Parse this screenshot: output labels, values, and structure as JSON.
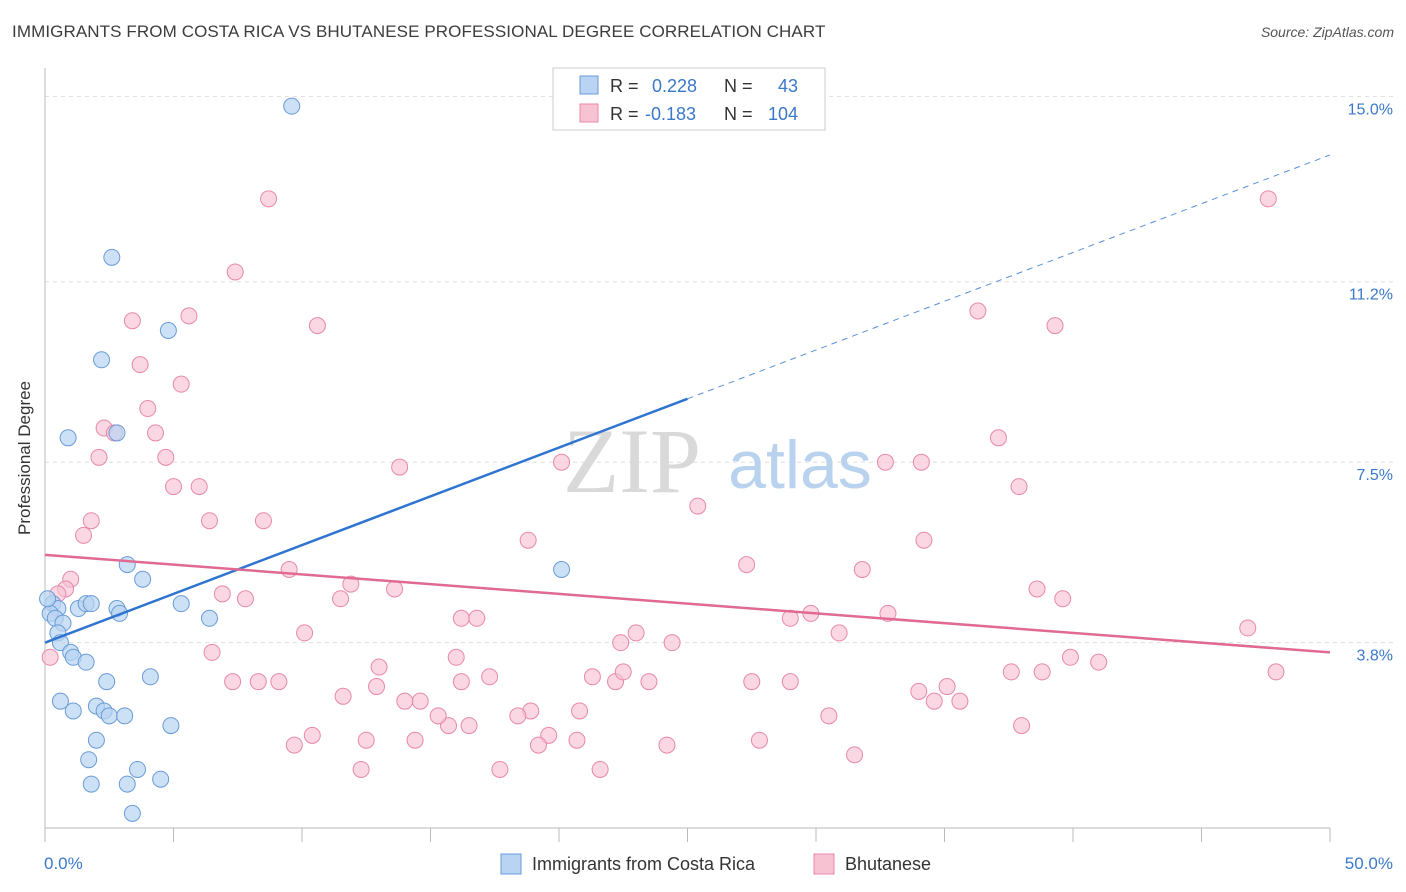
{
  "header": {
    "title": "IMMIGRANTS FROM COSTA RICA VS BHUTANESE PROFESSIONAL DEGREE CORRELATION CHART",
    "source": "Source: ZipAtlas.com"
  },
  "watermark": {
    "zip": "ZIP",
    "atlas": "atlas"
  },
  "colors": {
    "blue_fill": "#b8d4f2",
    "blue_stroke": "#6a9bd8",
    "blue_line": "#2f74d0",
    "pink_fill": "#f7c2d2",
    "pink_stroke": "#e889a8",
    "pink_line": "#e06a93",
    "axis_label": "#3a78c9",
    "grid": "#dddddd"
  },
  "chart_data": {
    "type": "scatter",
    "title": "IMMIGRANTS FROM COSTA RICA VS BHUTANESE PROFESSIONAL DEGREE CORRELATION CHART",
    "xlabel": "",
    "ylabel": "Professional Degree",
    "xlim": [
      0,
      50
    ],
    "ylim": [
      0,
      15.5
    ],
    "x_tick_labels": [
      "0.0%",
      "50.0%"
    ],
    "y_ticks": [
      3.8,
      7.5,
      11.2,
      15.0
    ],
    "y_tick_labels": [
      "3.8%",
      "7.5%",
      "11.2%",
      "15.0%"
    ],
    "legend": [
      {
        "swatch": "blue",
        "r_label": "R =",
        "r_value": "0.228",
        "n_label": "N =",
        "n_value": "43"
      },
      {
        "swatch": "pink",
        "r_label": "R =",
        "r_value": "-0.183",
        "n_label": "N =",
        "n_value": "104"
      }
    ],
    "series": [
      {
        "name": "Immigrants from Costa Rica",
        "color": "blue",
        "trend": {
          "x0": 0,
          "y0": 3.8,
          "x1": 25,
          "y1": 8.8,
          "dashed_to_x": 50,
          "dashed_to_y": 13.8
        },
        "points": [
          [
            9.6,
            14.8
          ],
          [
            2.6,
            11.7
          ],
          [
            4.8,
            10.2
          ],
          [
            2.2,
            9.6
          ],
          [
            2.8,
            8.1
          ],
          [
            0.9,
            8.0
          ],
          [
            3.2,
            5.4
          ],
          [
            3.8,
            5.1
          ],
          [
            0.3,
            4.6
          ],
          [
            0.5,
            4.5
          ],
          [
            1.3,
            4.5
          ],
          [
            1.6,
            4.6
          ],
          [
            1.8,
            4.6
          ],
          [
            2.8,
            4.5
          ],
          [
            2.9,
            4.4
          ],
          [
            5.3,
            4.6
          ],
          [
            6.4,
            4.3
          ],
          [
            0.2,
            4.4
          ],
          [
            0.4,
            4.3
          ],
          [
            0.7,
            4.2
          ],
          [
            0.5,
            4.0
          ],
          [
            0.6,
            3.8
          ],
          [
            1.0,
            3.6
          ],
          [
            1.1,
            3.5
          ],
          [
            1.6,
            3.4
          ],
          [
            2.4,
            3.0
          ],
          [
            4.1,
            3.1
          ],
          [
            0.6,
            2.6
          ],
          [
            1.1,
            2.4
          ],
          [
            2.0,
            2.5
          ],
          [
            2.3,
            2.4
          ],
          [
            2.5,
            2.3
          ],
          [
            3.1,
            2.3
          ],
          [
            4.9,
            2.1
          ],
          [
            2.0,
            1.8
          ],
          [
            1.7,
            1.4
          ],
          [
            3.6,
            1.2
          ],
          [
            4.5,
            1.0
          ],
          [
            1.8,
            0.9
          ],
          [
            3.2,
            0.9
          ],
          [
            3.4,
            0.3
          ],
          [
            20.1,
            5.3
          ],
          [
            0.1,
            4.7
          ]
        ]
      },
      {
        "name": "Bhutanese",
        "color": "pink",
        "trend": {
          "x0": 0,
          "y0": 5.6,
          "x1": 50,
          "y1": 3.6
        },
        "points": [
          [
            8.7,
            12.9
          ],
          [
            7.4,
            11.4
          ],
          [
            5.6,
            10.5
          ],
          [
            10.6,
            10.3
          ],
          [
            3.4,
            10.4
          ],
          [
            3.7,
            9.5
          ],
          [
            5.3,
            9.1
          ],
          [
            4.0,
            8.6
          ],
          [
            2.3,
            8.2
          ],
          [
            2.7,
            8.1
          ],
          [
            4.3,
            8.1
          ],
          [
            4.7,
            7.6
          ],
          [
            2.1,
            7.6
          ],
          [
            6.0,
            7.0
          ],
          [
            5.0,
            7.0
          ],
          [
            1.8,
            6.3
          ],
          [
            6.4,
            6.3
          ],
          [
            8.5,
            6.3
          ],
          [
            1.5,
            6.0
          ],
          [
            13.8,
            7.4
          ],
          [
            20.1,
            7.5
          ],
          [
            25.4,
            6.6
          ],
          [
            27.3,
            5.4
          ],
          [
            31.8,
            5.3
          ],
          [
            32.7,
            7.5
          ],
          [
            34.2,
            5.9
          ],
          [
            34.1,
            7.5
          ],
          [
            36.3,
            10.6
          ],
          [
            37.1,
            8.0
          ],
          [
            38.6,
            4.9
          ],
          [
            37.9,
            7.0
          ],
          [
            39.3,
            10.3
          ],
          [
            39.6,
            4.7
          ],
          [
            47.6,
            12.9
          ],
          [
            46.8,
            4.1
          ],
          [
            47.9,
            3.2
          ],
          [
            1.0,
            5.1
          ],
          [
            0.8,
            4.9
          ],
          [
            0.5,
            4.8
          ],
          [
            9.5,
            5.3
          ],
          [
            11.9,
            5.0
          ],
          [
            13.6,
            4.9
          ],
          [
            7.8,
            4.7
          ],
          [
            6.9,
            4.8
          ],
          [
            11.5,
            4.7
          ],
          [
            16.2,
            4.3
          ],
          [
            16.8,
            4.3
          ],
          [
            18.8,
            5.9
          ],
          [
            23.0,
            4.0
          ],
          [
            22.4,
            3.8
          ],
          [
            29.0,
            4.3
          ],
          [
            29.8,
            4.4
          ],
          [
            30.9,
            4.0
          ],
          [
            32.8,
            4.4
          ],
          [
            37.6,
            3.2
          ],
          [
            38.8,
            3.2
          ],
          [
            39.9,
            3.5
          ],
          [
            41.0,
            3.4
          ],
          [
            34.0,
            2.8
          ],
          [
            34.6,
            2.6
          ],
          [
            35.6,
            2.6
          ],
          [
            35.1,
            2.9
          ],
          [
            38.0,
            2.1
          ],
          [
            30.5,
            2.3
          ],
          [
            31.5,
            1.5
          ],
          [
            27.5,
            3.0
          ],
          [
            27.8,
            1.8
          ],
          [
            23.5,
            3.0
          ],
          [
            22.2,
            3.0
          ],
          [
            22.5,
            3.2
          ],
          [
            24.2,
            1.7
          ],
          [
            20.7,
            1.8
          ],
          [
            20.8,
            2.4
          ],
          [
            19.6,
            1.9
          ],
          [
            19.2,
            1.7
          ],
          [
            18.9,
            2.4
          ],
          [
            18.4,
            2.3
          ],
          [
            17.7,
            1.2
          ],
          [
            17.3,
            3.1
          ],
          [
            16.2,
            3.0
          ],
          [
            16.0,
            3.5
          ],
          [
            15.7,
            2.1
          ],
          [
            15.3,
            2.3
          ],
          [
            14.6,
            2.6
          ],
          [
            14.4,
            1.8
          ],
          [
            14.0,
            2.6
          ],
          [
            13.0,
            3.3
          ],
          [
            12.9,
            2.9
          ],
          [
            12.5,
            1.8
          ],
          [
            12.3,
            1.2
          ],
          [
            11.6,
            2.7
          ],
          [
            10.4,
            1.9
          ],
          [
            9.7,
            1.7
          ],
          [
            10.1,
            4.0
          ],
          [
            9.1,
            3.0
          ],
          [
            8.3,
            3.0
          ],
          [
            7.3,
            3.0
          ],
          [
            6.5,
            3.6
          ],
          [
            21.6,
            1.2
          ],
          [
            21.3,
            3.1
          ],
          [
            29.0,
            3.0
          ],
          [
            16.5,
            2.1
          ],
          [
            0.2,
            3.5
          ],
          [
            24.4,
            3.8
          ]
        ]
      }
    ],
    "bottom_legend": [
      "Immigrants from Costa Rica",
      "Bhutanese"
    ]
  }
}
